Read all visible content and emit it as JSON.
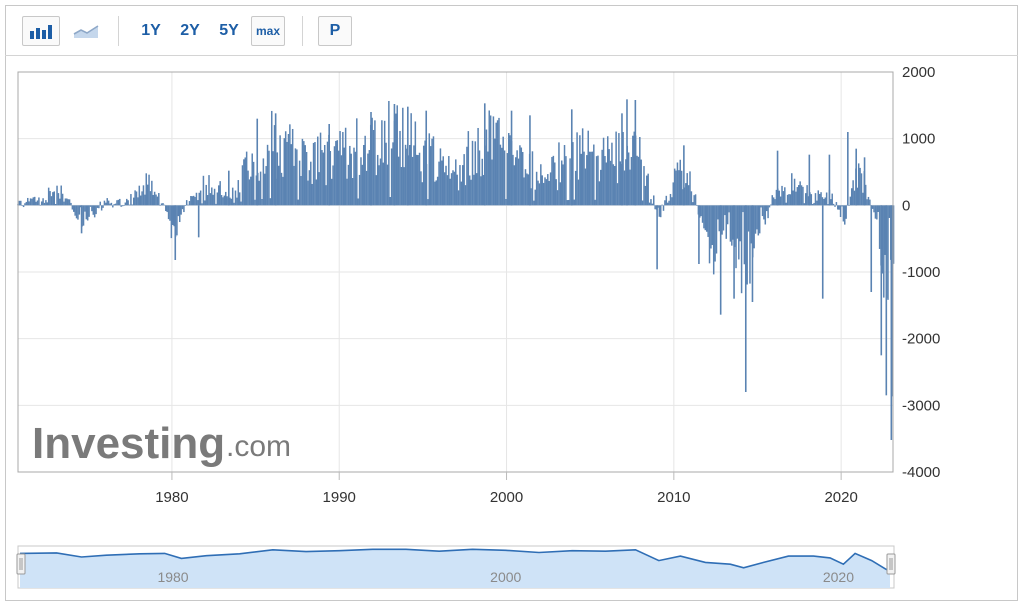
{
  "toolbar": {
    "bar_chart_icon": "bar-chart-icon",
    "line_chart_icon": "line-chart-icon",
    "range_1y": "1Y",
    "range_2y": "2Y",
    "range_5y": "5Y",
    "range_max": "max",
    "p_button": "P"
  },
  "watermark": {
    "brand": "Investing",
    "suffix": ".com"
  },
  "navigator": {
    "labels": [
      "1980",
      "2000",
      "2020"
    ]
  },
  "colors": {
    "bar": "#5a83b2",
    "navigator_fill": "#cfe3f7",
    "navigator_line": "#2f6eb5"
  },
  "chart_data": {
    "type": "bar",
    "xlabel": "",
    "ylabel": "",
    "title": "",
    "xlim": [
      1970.8,
      2023.1
    ],
    "ylim": [
      -4000,
      2000
    ],
    "y_ticks": [
      "2000",
      "1000",
      "0",
      "-1000",
      "-2000",
      "-3000",
      "-4000"
    ],
    "y_tick_values": [
      2000,
      1000,
      0,
      -1000,
      -2000,
      -3000,
      -4000
    ],
    "x_ticks": [
      "1980",
      "1990",
      "2000",
      "2010",
      "2020"
    ],
    "x_tick_values": [
      1980,
      1990,
      2000,
      2010,
      2020
    ],
    "grid": true,
    "anchors": [
      [
        1970.8,
        20
      ],
      [
        1971.5,
        50
      ],
      [
        1972.3,
        150
      ],
      [
        1973.0,
        200
      ],
      [
        1973.4,
        220
      ],
      [
        1973.9,
        60
      ],
      [
        1974.2,
        -150
      ],
      [
        1974.6,
        -320
      ],
      [
        1975.0,
        -260
      ],
      [
        1975.6,
        -50
      ],
      [
        1976.2,
        40
      ],
      [
        1976.8,
        20
      ],
      [
        1977.5,
        110
      ],
      [
        1978.0,
        280
      ],
      [
        1978.6,
        400
      ],
      [
        1979.0,
        330
      ],
      [
        1979.5,
        100
      ],
      [
        1979.9,
        -320
      ],
      [
        1980.2,
        -500
      ],
      [
        1980.5,
        -180
      ],
      [
        1981.0,
        80
      ],
      [
        1981.6,
        220
      ],
      [
        1982.0,
        380
      ],
      [
        1982.5,
        200
      ],
      [
        1983.2,
        300
      ],
      [
        1983.8,
        400
      ],
      [
        1984.3,
        650
      ],
      [
        1984.9,
        820
      ],
      [
        1985.5,
        980
      ],
      [
        1986.0,
        1100
      ],
      [
        1986.6,
        1200
      ],
      [
        1987.2,
        920
      ],
      [
        1987.8,
        820
      ],
      [
        1988.4,
        760
      ],
      [
        1989.0,
        880
      ],
      [
        1989.6,
        820
      ],
      [
        1990.2,
        920
      ],
      [
        1990.8,
        1000
      ],
      [
        1991.4,
        1050
      ],
      [
        1992.0,
        1100
      ],
      [
        1992.6,
        1220
      ],
      [
        1993.2,
        1260
      ],
      [
        1993.8,
        1180
      ],
      [
        1994.4,
        1120
      ],
      [
        1995.0,
        1020
      ],
      [
        1995.5,
        880
      ],
      [
        1996.1,
        780
      ],
      [
        1996.7,
        720
      ],
      [
        1997.3,
        820
      ],
      [
        1997.9,
        880
      ],
      [
        1998.5,
        1050
      ],
      [
        1999.1,
        1150
      ],
      [
        1999.7,
        980
      ],
      [
        2000.3,
        920
      ],
      [
        2000.9,
        820
      ],
      [
        2001.5,
        760
      ],
      [
        2002.0,
        560
      ],
      [
        2002.6,
        620
      ],
      [
        2003.2,
        720
      ],
      [
        2003.8,
        820
      ],
      [
        2004.4,
        920
      ],
      [
        2005.0,
        880
      ],
      [
        2005.6,
        780
      ],
      [
        2006.2,
        820
      ],
      [
        2006.8,
        920
      ],
      [
        2007.3,
        1020
      ],
      [
        2007.9,
        880
      ],
      [
        2008.3,
        620
      ],
      [
        2008.7,
        280
      ],
      [
        2009.0,
        -180
      ],
      [
        2009.3,
        -100
      ],
      [
        2009.8,
        380
      ],
      [
        2010.3,
        580
      ],
      [
        2010.8,
        480
      ],
      [
        2011.3,
        80
      ],
      [
        2011.6,
        -300
      ],
      [
        2012.0,
        -620
      ],
      [
        2012.4,
        -820
      ],
      [
        2012.8,
        -520
      ],
      [
        2013.2,
        -380
      ],
      [
        2013.6,
        -680
      ],
      [
        2013.9,
        -920
      ],
      [
        2014.3,
        -1080
      ],
      [
        2014.7,
        -780
      ],
      [
        2015.0,
        -420
      ],
      [
        2015.5,
        -180
      ],
      [
        2015.9,
        80
      ],
      [
        2016.3,
        280
      ],
      [
        2016.8,
        420
      ],
      [
        2017.3,
        480
      ],
      [
        2017.8,
        320
      ],
      [
        2018.2,
        220
      ],
      [
        2018.6,
        160
      ],
      [
        2019.0,
        240
      ],
      [
        2019.5,
        120
      ],
      [
        2019.9,
        -100
      ],
      [
        2020.3,
        -280
      ],
      [
        2020.6,
        420
      ],
      [
        2020.9,
        620
      ],
      [
        2021.2,
        460
      ],
      [
        2021.6,
        280
      ],
      [
        2021.9,
        -120
      ],
      [
        2022.2,
        -420
      ],
      [
        2022.5,
        -900
      ],
      [
        2022.8,
        -1700
      ],
      [
        2023.1,
        -2400
      ]
    ],
    "spikes": [
      [
        1974.6,
        -420
      ],
      [
        1980.2,
        -820
      ],
      [
        1981.6,
        -480
      ],
      [
        1983.4,
        520
      ],
      [
        1985.1,
        1300
      ],
      [
        1986.2,
        1380
      ],
      [
        1989.4,
        1220
      ],
      [
        1991.9,
        1400
      ],
      [
        1993.3,
        1520
      ],
      [
        1994.1,
        1480
      ],
      [
        1995.2,
        1420
      ],
      [
        1998.7,
        1530
      ],
      [
        2000.3,
        1420
      ],
      [
        2001.4,
        1350
      ],
      [
        2003.9,
        1440
      ],
      [
        2006.9,
        1380
      ],
      [
        2007.2,
        1590
      ],
      [
        2007.7,
        1580
      ],
      [
        2009.0,
        -960
      ],
      [
        2010.6,
        900
      ],
      [
        2011.5,
        -880
      ],
      [
        2012.8,
        -1640
      ],
      [
        2013.6,
        -1400
      ],
      [
        2014.3,
        -2800
      ],
      [
        2014.7,
        -1450
      ],
      [
        2016.2,
        820
      ],
      [
        2018.1,
        760
      ],
      [
        2018.9,
        -1400
      ],
      [
        2019.3,
        760
      ],
      [
        2020.4,
        1100
      ],
      [
        2020.9,
        850
      ],
      [
        2021.4,
        720
      ],
      [
        2021.8,
        -1300
      ],
      [
        2022.4,
        -2250
      ],
      [
        2022.7,
        -2850
      ],
      [
        2023.0,
        -3520
      ]
    ],
    "navigator_line": [
      [
        1970.8,
        28
      ],
      [
        1973.0,
        29
      ],
      [
        1974.5,
        20
      ],
      [
        1976.0,
        24
      ],
      [
        1978.0,
        27
      ],
      [
        1979.5,
        28
      ],
      [
        1980.5,
        17
      ],
      [
        1982.0,
        23
      ],
      [
        1984.0,
        27
      ],
      [
        1986.0,
        36
      ],
      [
        1988.0,
        32
      ],
      [
        1990.0,
        34
      ],
      [
        1992.0,
        37
      ],
      [
        1994.0,
        37
      ],
      [
        1996.0,
        33
      ],
      [
        1998.0,
        37
      ],
      [
        2000.0,
        35
      ],
      [
        2002.0,
        30
      ],
      [
        2004.0,
        34
      ],
      [
        2006.0,
        33
      ],
      [
        2007.8,
        36
      ],
      [
        2009.2,
        12
      ],
      [
        2010.5,
        22
      ],
      [
        2012.0,
        8
      ],
      [
        2013.5,
        4
      ],
      [
        2014.3,
        -4
      ],
      [
        2015.5,
        8
      ],
      [
        2017.0,
        22
      ],
      [
        2018.5,
        22
      ],
      [
        2019.5,
        18
      ],
      [
        2020.3,
        4
      ],
      [
        2021.0,
        28
      ],
      [
        2022.0,
        12
      ],
      [
        2022.8,
        -6
      ],
      [
        2023.1,
        -12
      ]
    ]
  }
}
